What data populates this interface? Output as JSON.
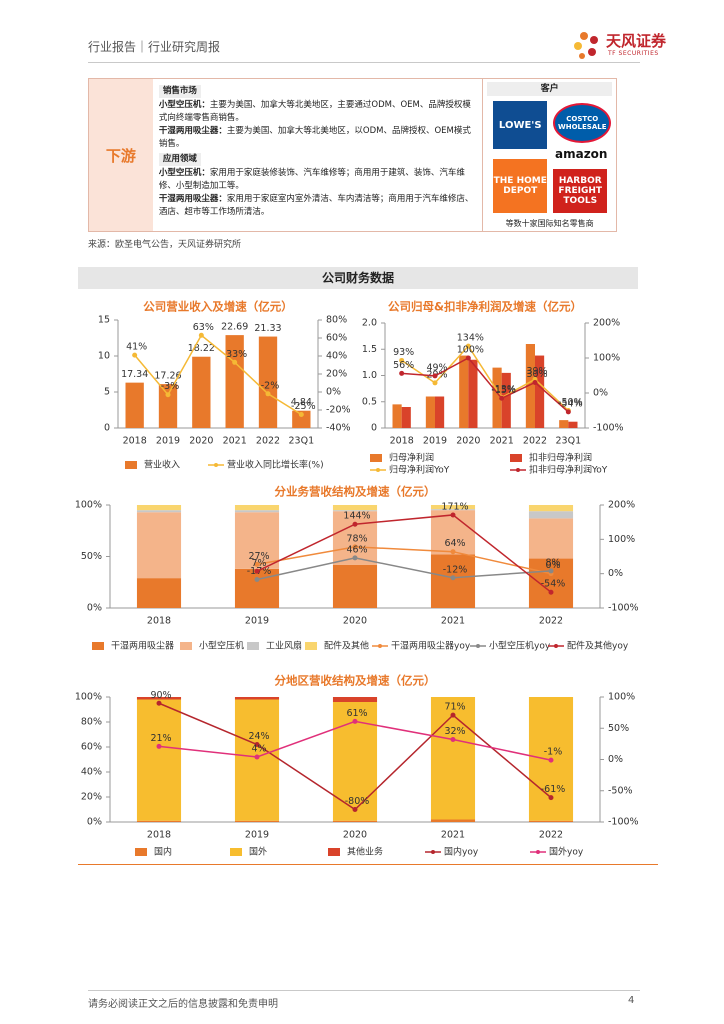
{
  "header": {
    "report_type": "行业报告｜行业研究周报",
    "logo": "天风证券",
    "logo_en": "TF SECURITIES"
  },
  "downstream": {
    "label": "下游",
    "sections": [
      {
        "heading": "销售市场",
        "items": [
          {
            "term": "小型空压机：",
            "text": "主要为美国、加拿大等北美地区，主要通过ODM、OEM、品牌授权模式向终端零售商销售。"
          },
          {
            "term": "干湿两用吸尘器：",
            "text": "主要为美国、加拿大等北美地区，以ODM、品牌授权、OEM模式销售。"
          }
        ]
      },
      {
        "heading": "应用领域",
        "items": [
          {
            "term": "小型空压机：",
            "text": "家用用于家庭装修装饰、汽车维修等；商用用于建筑、装饰、汽车维修、小型制造加工等。"
          },
          {
            "term": "干湿两用吸尘器：",
            "text": "家用用于家庭室内室外清洁、车内清洁等；商用用于汽车维修店、酒店、超市等工作场所清洁。"
          }
        ]
      }
    ],
    "customers": {
      "heading": "客户",
      "logos": [
        "LOWE'S",
        "COSTCO WHOLESALE",
        "amazon",
        "THE HOME DEPOT",
        "HARBOR FREIGHT TOOLS"
      ],
      "caption": "等数十家国际知名零售商"
    }
  },
  "source": "来源：欧圣电气公告，天风证券研究所",
  "section_title": "公司财务数据",
  "chart_data": [
    {
      "type": "combo",
      "title": "公司营业收入及增速（亿元）",
      "categories": [
        "2018",
        "2019",
        "2020",
        "2021",
        "2022",
        "23Q1"
      ],
      "series": [
        {
          "name": "营业收入",
          "color": "#e8792b",
          "values": [
            6.3,
            6.1,
            9.9,
            12.9,
            12.7,
            2.4
          ]
        },
        {
          "name": "营业收入同比增长率(%)",
          "color": "#f5b935",
          "axis": "y2",
          "values": [
            41,
            -3,
            63,
            33,
            -2,
            -25
          ],
          "value_labels": [
            "41%",
            "-3%",
            "63%",
            "33%",
            "-2%",
            "-25%"
          ]
        }
      ],
      "annotations": [
        "17.34",
        "17.26",
        "18.22",
        "22.69",
        "21.33",
        "4.84"
      ],
      "ylim": [
        0,
        15
      ],
      "yticks": [
        0,
        5,
        10,
        15
      ],
      "y2lim": [
        -40,
        80
      ],
      "y2ticks": [
        {
          "value": -40,
          "label": "-40%"
        },
        {
          "value": -20,
          "label": "-20%"
        },
        {
          "value": 0,
          "label": "0%"
        },
        {
          "value": 20,
          "label": "20%"
        },
        {
          "value": 40,
          "label": "40%"
        },
        {
          "value": 60,
          "label": "60%"
        },
        {
          "value": 80,
          "label": "80%"
        }
      ]
    },
    {
      "type": "combo",
      "title": "公司归母&扣非净利润及增速（亿元）",
      "categories": [
        "2018",
        "2019",
        "2020",
        "2021",
        "2022",
        "23Q1"
      ],
      "series": [
        {
          "name": "归母净利润",
          "color": "#e8792b",
          "values": [
            0.45,
            0.6,
            1.38,
            1.15,
            1.6,
            0.15
          ]
        },
        {
          "name": "扣非归母净利润",
          "color": "#d9432a",
          "values": [
            0.4,
            0.6,
            1.3,
            1.05,
            1.38,
            0.12
          ]
        },
        {
          "name": "归母净利润YoY",
          "color": "#f5b935",
          "axis": "y2",
          "values": [
            93,
            29,
            134,
            -13,
            39,
            -50
          ],
          "value_labels": [
            "93%",
            "29%",
            "134%",
            "-13%",
            "39%",
            "-50%"
          ]
        },
        {
          "name": "扣非归母净利润YoY",
          "color": "#c0262d",
          "axis": "y2",
          "values": [
            56,
            49,
            100,
            -15,
            30,
            -54
          ],
          "value_labels": [
            "56%",
            "49%",
            "100%",
            "-15%",
            "30%",
            "-54%"
          ]
        }
      ],
      "ylim": [
        0,
        2
      ],
      "yticks": [
        0,
        0.5,
        {
          "value": 1,
          "label": "1.0"
        },
        1.5,
        {
          "value": 2,
          "label": "2.0"
        }
      ],
      "y2lim": [
        -100,
        200
      ],
      "y2ticks": [
        {
          "value": -100,
          "label": "-100%"
        },
        {
          "value": 0,
          "label": "0%"
        },
        {
          "value": 100,
          "label": "100%"
        },
        {
          "value": 200,
          "label": "200%"
        }
      ]
    },
    {
      "type": "stacked",
      "title": "分业务营收结构及增速（亿元）",
      "categories": [
        "2018",
        "2019",
        "2020",
        "2021",
        "2022"
      ],
      "series": [
        {
          "name": "干湿两用吸尘器",
          "color": "#e8792b",
          "values": [
            29,
            38,
            42,
            52,
            48
          ]
        },
        {
          "name": "小型空压机",
          "color": "#f4b48a",
          "values": [
            64,
            55,
            52,
            43,
            39
          ]
        },
        {
          "name": "工业风扇",
          "color": "#c8c8c8",
          "values": [
            2,
            2,
            1,
            1,
            7
          ]
        },
        {
          "name": "配件及其他",
          "color": "#f9d56e",
          "values": [
            5,
            5,
            5,
            4,
            6
          ]
        },
        {
          "name": "干湿两用吸尘器yoy",
          "color": "#f08a3c",
          "axis": "y2",
          "values": [
            null,
            27,
            78,
            64,
            0
          ],
          "value_labels": [
            null,
            "27%",
            "78%",
            "64%",
            "0%"
          ]
        },
        {
          "name": "小型空压机yoy",
          "color": "#888888",
          "axis": "y2",
          "values": [
            null,
            -17,
            46,
            -12,
            8
          ],
          "value_labels": [
            null,
            "-17%",
            "46%",
            "-12%",
            "8%"
          ]
        },
        {
          "name": "配件及其他yoy",
          "color": "#c0262d",
          "axis": "y2",
          "values": [
            null,
            7,
            144,
            171,
            -54
          ],
          "value_labels": [
            null,
            "7%",
            "144%",
            "171%",
            "-54%"
          ]
        }
      ],
      "ylim": [
        0,
        100
      ],
      "yticks": [
        {
          "value": 0,
          "label": "0%"
        },
        {
          "value": 50,
          "label": "50%"
        },
        {
          "value": 100,
          "label": "100%"
        }
      ],
      "y2lim": [
        -100,
        200
      ],
      "y2ticks": [
        {
          "value": -100,
          "label": "-100%"
        },
        {
          "value": 0,
          "label": "0%"
        },
        {
          "value": 100,
          "label": "100%"
        },
        {
          "value": 200,
          "label": "200%"
        }
      ]
    },
    {
      "type": "stacked",
      "title": "分地区营收结构及增速（亿元）",
      "categories": [
        "2018",
        "2019",
        "2020",
        "2021",
        "2022"
      ],
      "series": [
        {
          "name": "国内",
          "color": "#e8792b",
          "values": [
            1,
            1,
            1,
            2,
            1
          ]
        },
        {
          "name": "国外",
          "color": "#f7bd2f",
          "values": [
            97,
            97,
            95,
            98,
            99
          ]
        },
        {
          "name": "其他业务",
          "color": "#d9432a",
          "values": [
            2,
            2,
            4,
            0,
            0
          ]
        },
        {
          "name": "国内yoy",
          "color": "#b5262d",
          "axis": "y2",
          "values": [
            90,
            24,
            -80,
            71,
            -61
          ],
          "value_labels": [
            "90%",
            "24%",
            "-80%",
            "71%",
            "-61%"
          ]
        },
        {
          "name": "国外yoy",
          "color": "#e0307a",
          "axis": "y2",
          "values": [
            21,
            4,
            61,
            32,
            -1
          ],
          "value_labels": [
            "21%",
            "4%",
            "61%",
            "32%",
            "-1%"
          ]
        }
      ],
      "ylim": [
        0,
        100
      ],
      "yticks": [
        {
          "value": 0,
          "label": "0%"
        },
        {
          "value": 20,
          "label": "20%"
        },
        {
          "value": 40,
          "label": "40%"
        },
        {
          "value": 60,
          "label": "60%"
        },
        {
          "value": 80,
          "label": "80%"
        },
        {
          "value": 100,
          "label": "100%"
        }
      ],
      "y2lim": [
        -100,
        100
      ],
      "y2ticks": [
        {
          "value": -100,
          "label": "-100%"
        },
        {
          "value": -50,
          "label": "-50%"
        },
        {
          "value": 0,
          "label": "0%"
        },
        {
          "value": 50,
          "label": "50%"
        },
        {
          "value": 100,
          "label": "100%"
        }
      ]
    }
  ],
  "footer": {
    "disclaimer": "请务必阅读正文之后的信息披露和免责申明",
    "page": "4"
  }
}
